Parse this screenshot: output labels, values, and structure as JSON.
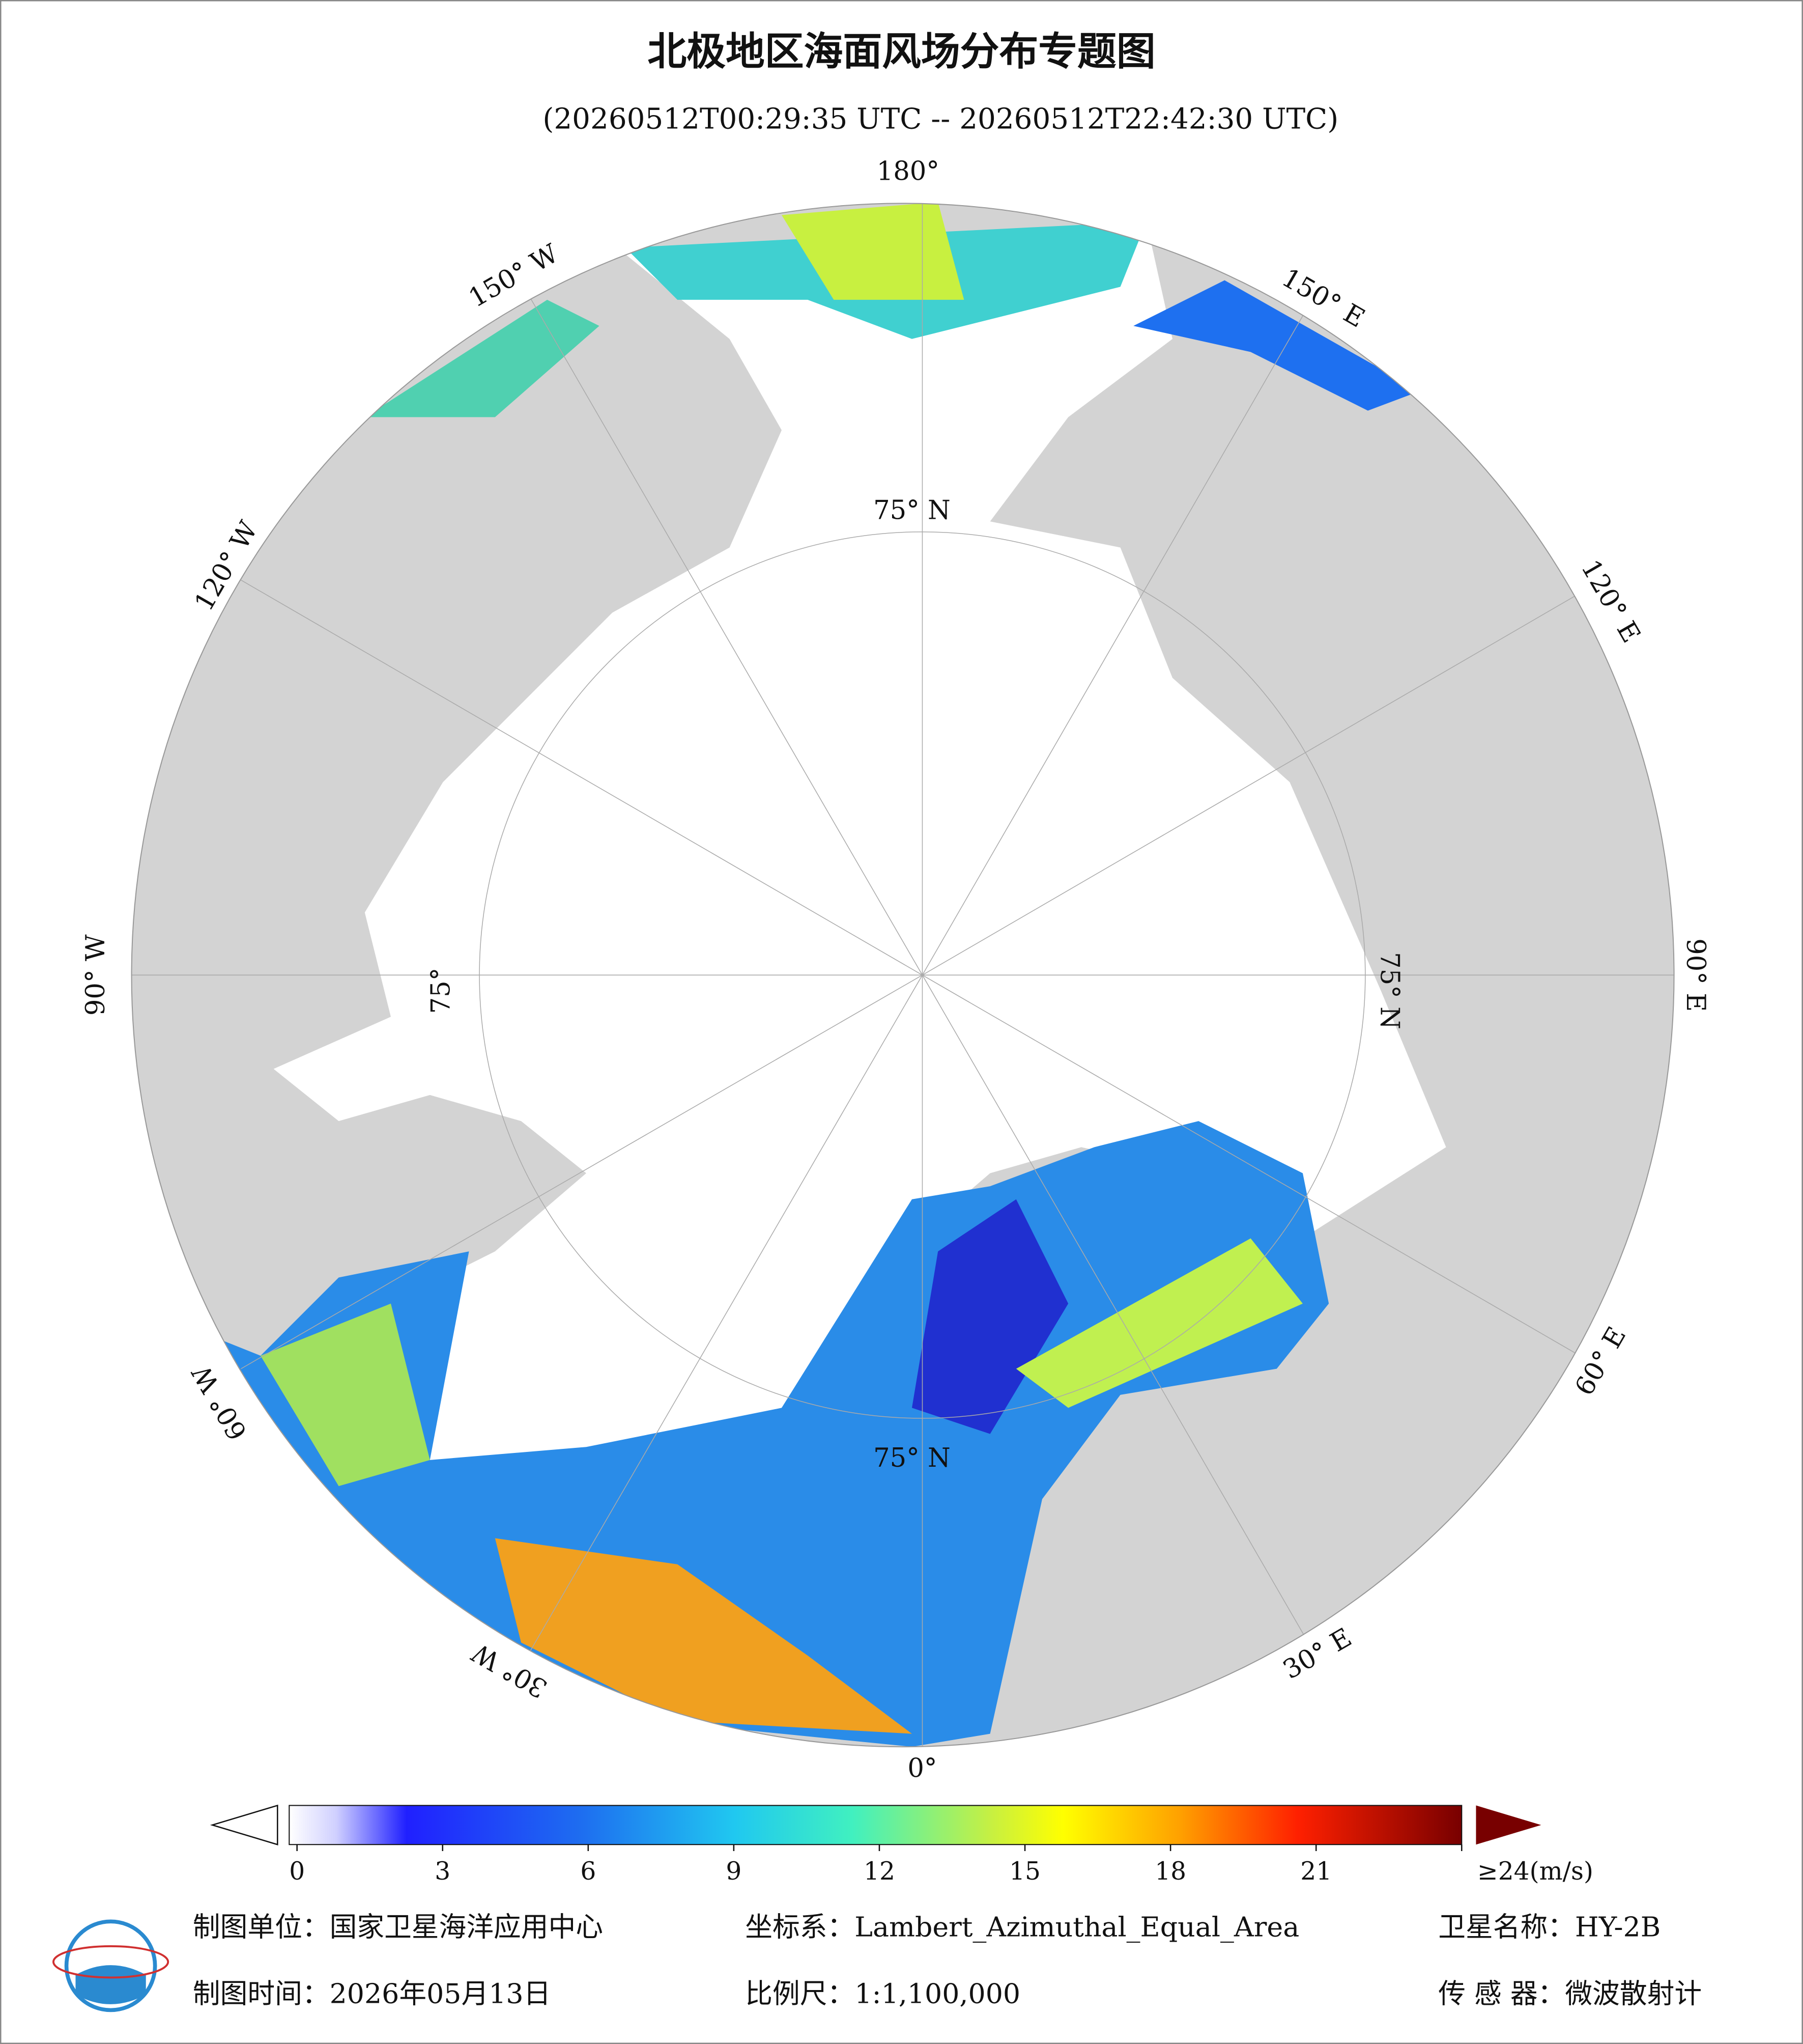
{
  "title": "北极地区海面风场分布专题图",
  "subtitle": "(20260512T00:29:35 UTC -- 20260512T22:42:30 UTC)",
  "map": {
    "longitude_labels": [
      "180°",
      "150° W",
      "120° W",
      "90° W",
      "60° W",
      "30° W",
      "0°",
      "30° E",
      "60° E",
      "90° E",
      "120° E",
      "150° E"
    ],
    "latitude_labels": [
      "75° N",
      "75° N",
      "75°",
      "75° N"
    ]
  },
  "colorbar": {
    "range": [
      0,
      24
    ],
    "ticks": [
      0,
      3,
      6,
      9,
      12,
      15,
      18,
      21,
      {
        "value": 24,
        "label": "≥24(m/s)"
      }
    ]
  },
  "footer": {
    "unit": "制图单位：国家卫星海洋应用中心",
    "time": "制图时间：2026年05月13日",
    "crs": "坐标系：Lambert_Azimuthal_Equal_Area",
    "scale": "比例尺：1:1,100,000",
    "satellite": "卫星名称：HY-2B",
    "sensor": "传 感 器：微波散射计"
  }
}
